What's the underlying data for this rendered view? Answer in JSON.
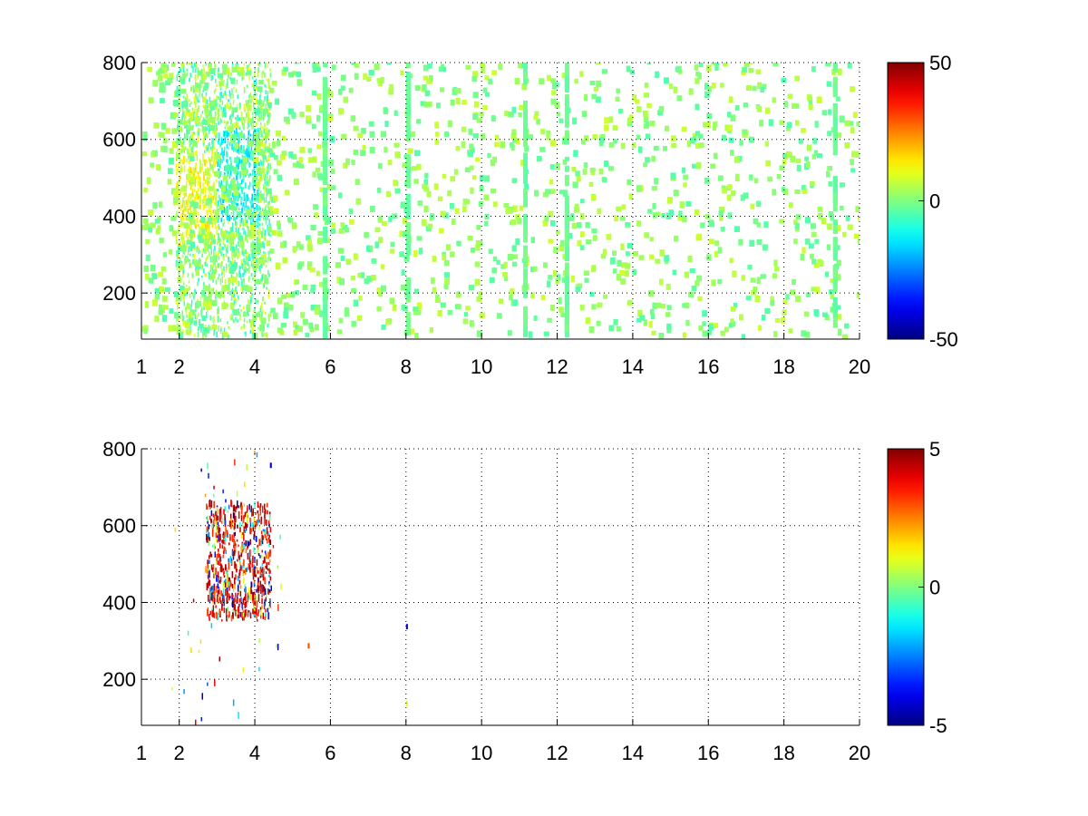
{
  "chart_data": [
    {
      "type": "heatmap",
      "title": "",
      "xlabel": "",
      "ylabel": "",
      "xlim": [
        1,
        20
      ],
      "ylim": [
        80,
        800
      ],
      "xticks": [
        1,
        2,
        4,
        6,
        8,
        10,
        12,
        14,
        16,
        18,
        20
      ],
      "yticks": [
        200,
        400,
        600,
        800
      ],
      "grid": true,
      "colorbar": {
        "min": -50,
        "max": 50,
        "ticks": [
          50,
          0,
          -50
        ],
        "colormap": "jet"
      },
      "activity": {
        "cluster_x": [
          1.9,
          4.4
        ],
        "cluster_y": [
          250,
          700
        ],
        "cluster_value_range": [
          -20,
          20
        ],
        "background_value_range": [
          -5,
          8
        ],
        "notable_columns": [
          5.8,
          8.0,
          11.1,
          12.2,
          19.3
        ]
      }
    },
    {
      "type": "heatmap",
      "title": "",
      "xlabel": "",
      "ylabel": "",
      "xlim": [
        1,
        20
      ],
      "ylim": [
        80,
        800
      ],
      "xticks": [
        1,
        2,
        4,
        6,
        8,
        10,
        12,
        14,
        16,
        18,
        20
      ],
      "yticks": [
        200,
        400,
        600,
        800
      ],
      "grid": true,
      "colorbar": {
        "min": -5,
        "max": 5,
        "ticks": [
          5,
          0,
          -5
        ],
        "colormap": "jet"
      },
      "activity": {
        "cluster_x": [
          2.7,
          4.4
        ],
        "cluster_y": [
          350,
          650
        ],
        "cluster_value_range": [
          -5,
          5
        ],
        "dominant_value": 5,
        "isolated_points": [
          {
            "x": 5.4,
            "y": 280,
            "value": 3
          },
          {
            "x": 8.0,
            "y": 330,
            "value": -4
          },
          {
            "x": 8.0,
            "y": 130,
            "value": 1
          },
          {
            "x": 4.4,
            "y": 750,
            "value": -4
          }
        ]
      }
    }
  ]
}
